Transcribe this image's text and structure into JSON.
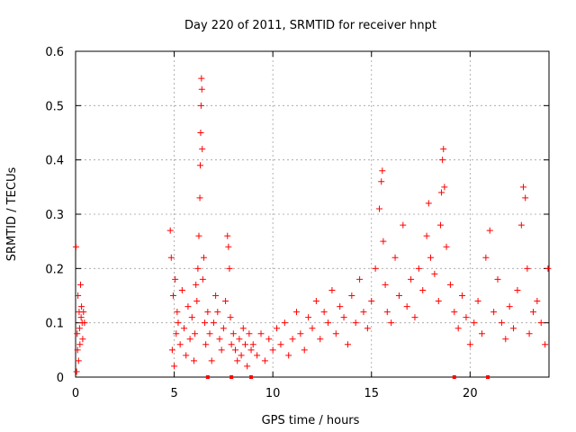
{
  "chart_data": {
    "type": "scatter",
    "title": "Day 220 of 2011, SRMTID for receiver hnpt",
    "xlabel": "GPS time / hours",
    "ylabel": "SRMTID / TECUs",
    "xlim": [
      0,
      24
    ],
    "ylim": [
      0,
      0.6
    ],
    "x_ticks": [
      0,
      5,
      10,
      15,
      20
    ],
    "x_tick_labels": [
      "0",
      "5",
      "10",
      "15",
      "20"
    ],
    "y_ticks": [
      0,
      0.1,
      0.2,
      0.3,
      0.4,
      0.5,
      0.6
    ],
    "y_tick_labels": [
      "0",
      "0.1",
      "0.2",
      "0.3",
      "0.4",
      "0.5",
      "0.6"
    ],
    "grid": true,
    "marker": "+",
    "colors": {
      "points": "#ff0000",
      "grid": "#a0a0a0",
      "axes": "#000000"
    },
    "series": [
      {
        "name": "SRMTID",
        "x": [
          0.02,
          0.05,
          0.08,
          0.1,
          0.12,
          0.15,
          0.18,
          0.2,
          0.22,
          0.25,
          0.28,
          0.3,
          0.33,
          0.36,
          0.4,
          0.45,
          4.8,
          4.85,
          4.9,
          4.95,
          5.0,
          5.05,
          5.1,
          5.15,
          5.2,
          5.3,
          5.4,
          5.5,
          5.6,
          5.7,
          5.8,
          5.9,
          6.0,
          6.05,
          6.1,
          6.15,
          6.2,
          6.25,
          6.3,
          6.32,
          6.34,
          6.36,
          6.38,
          6.4,
          6.42,
          6.45,
          6.5,
          6.55,
          6.6,
          6.7,
          6.8,
          6.9,
          7.0,
          7.1,
          7.2,
          7.3,
          7.4,
          7.5,
          7.6,
          7.7,
          7.75,
          7.8,
          7.85,
          7.9,
          8.0,
          8.1,
          8.2,
          8.3,
          8.4,
          8.5,
          8.6,
          8.7,
          8.8,
          8.9,
          9.0,
          9.2,
          9.4,
          9.6,
          9.8,
          10.0,
          10.2,
          10.4,
          10.6,
          10.8,
          11.0,
          11.2,
          11.4,
          11.6,
          11.8,
          12.0,
          12.2,
          12.4,
          12.6,
          12.8,
          13.0,
          13.2,
          13.4,
          13.6,
          13.8,
          14.0,
          14.2,
          14.4,
          14.6,
          14.8,
          15.0,
          15.2,
          15.4,
          15.5,
          15.55,
          15.6,
          15.7,
          15.8,
          16.0,
          16.2,
          16.4,
          16.6,
          16.8,
          17.0,
          17.2,
          17.4,
          17.6,
          17.8,
          17.9,
          18.0,
          18.2,
          18.4,
          18.5,
          18.55,
          18.6,
          18.65,
          18.7,
          18.8,
          19.0,
          19.2,
          19.4,
          19.6,
          19.8,
          20.0,
          20.2,
          20.4,
          20.6,
          20.8,
          21.0,
          21.2,
          21.4,
          21.6,
          21.8,
          22.0,
          22.2,
          22.4,
          22.6,
          22.7,
          22.8,
          22.9,
          23.0,
          23.2,
          23.4,
          23.6,
          23.8,
          23.95
        ],
        "y": [
          0.24,
          0.01,
          0.08,
          0.05,
          0.15,
          0.03,
          0.12,
          0.09,
          0.06,
          0.17,
          0.11,
          0.13,
          0.1,
          0.07,
          0.12,
          0.1,
          0.27,
          0.22,
          0.05,
          0.15,
          0.02,
          0.18,
          0.08,
          0.12,
          0.1,
          0.06,
          0.16,
          0.09,
          0.04,
          0.13,
          0.07,
          0.11,
          0.03,
          0.08,
          0.17,
          0.14,
          0.2,
          0.26,
          0.33,
          0.39,
          0.45,
          0.5,
          0.55,
          0.53,
          0.42,
          0.18,
          0.22,
          0.1,
          0.06,
          0.12,
          0.08,
          0.03,
          0.1,
          0.15,
          0.12,
          0.07,
          0.05,
          0.09,
          0.14,
          0.26,
          0.24,
          0.2,
          0.11,
          0.06,
          0.08,
          0.05,
          0.03,
          0.07,
          0.04,
          0.09,
          0.06,
          0.02,
          0.08,
          0.05,
          0.06,
          0.04,
          0.08,
          0.03,
          0.07,
          0.05,
          0.09,
          0.06,
          0.1,
          0.04,
          0.07,
          0.12,
          0.08,
          0.05,
          0.11,
          0.09,
          0.14,
          0.07,
          0.12,
          0.1,
          0.16,
          0.08,
          0.13,
          0.11,
          0.06,
          0.15,
          0.1,
          0.18,
          0.12,
          0.09,
          0.14,
          0.2,
          0.31,
          0.36,
          0.38,
          0.25,
          0.17,
          0.12,
          0.1,
          0.22,
          0.15,
          0.28,
          0.13,
          0.18,
          0.11,
          0.2,
          0.16,
          0.26,
          0.32,
          0.22,
          0.19,
          0.14,
          0.28,
          0.34,
          0.4,
          0.42,
          0.35,
          0.24,
          0.17,
          0.12,
          0.09,
          0.15,
          0.11,
          0.06,
          0.1,
          0.14,
          0.08,
          0.22,
          0.27,
          0.12,
          0.18,
          0.1,
          0.07,
          0.13,
          0.09,
          0.16,
          0.28,
          0.35,
          0.33,
          0.2,
          0.08,
          0.12,
          0.14,
          0.1,
          0.06,
          0.2
        ]
      }
    ],
    "axis_markers": [
      {
        "x": 6.7,
        "y": 0
      },
      {
        "x": 7.9,
        "y": 0
      },
      {
        "x": 8.9,
        "y": 0
      },
      {
        "x": 19.2,
        "y": 0
      },
      {
        "x": 20.9,
        "y": 0
      }
    ]
  }
}
